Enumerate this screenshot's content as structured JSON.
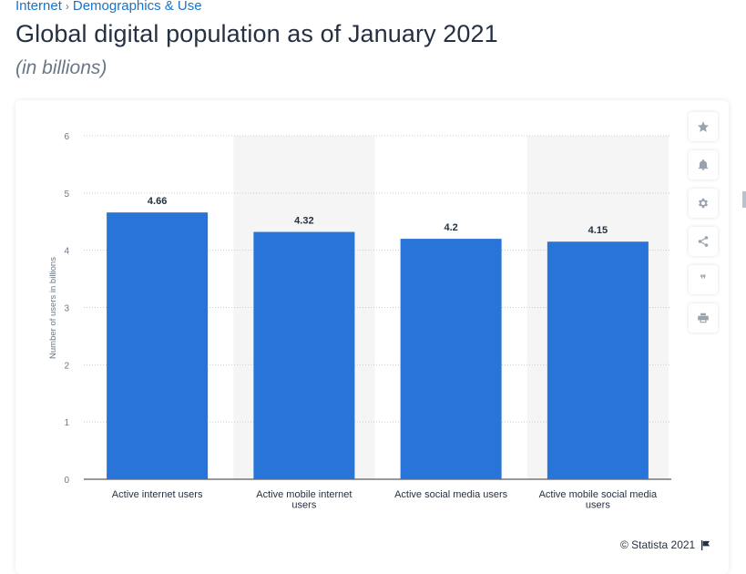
{
  "breadcrumb": {
    "items": [
      "Internet",
      "Demographics & Use"
    ]
  },
  "page": {
    "title": "Global digital population as of January 2021",
    "subtitle": "(in billions)"
  },
  "toolbar": {
    "icons": [
      "star-icon",
      "bell-icon",
      "gear-icon",
      "share-icon",
      "quote-icon",
      "print-icon"
    ]
  },
  "footer": {
    "source": "© Statista 2021"
  },
  "colors": {
    "bar": "#2874d9",
    "band": "#f5f5f5",
    "grid": "#c8ccd1",
    "accent": "#1a73c9"
  },
  "chart_data": {
    "type": "bar",
    "title": "Global digital population as of January 2021",
    "subtitle": "(in billions)",
    "categories": [
      "Active internet users",
      "Active mobile internet users",
      "Active social media users",
      "Active mobile social media users"
    ],
    "values": [
      4.66,
      4.32,
      4.2,
      4.15
    ],
    "data_labels": [
      "4.66",
      "4.32",
      "4.2",
      "4.15"
    ],
    "xlabel": "",
    "ylabel": "Number of users in billions",
    "ylim": [
      0,
      6
    ],
    "yticks": [
      0,
      1,
      2,
      3,
      4,
      5,
      6
    ],
    "grid": true
  }
}
